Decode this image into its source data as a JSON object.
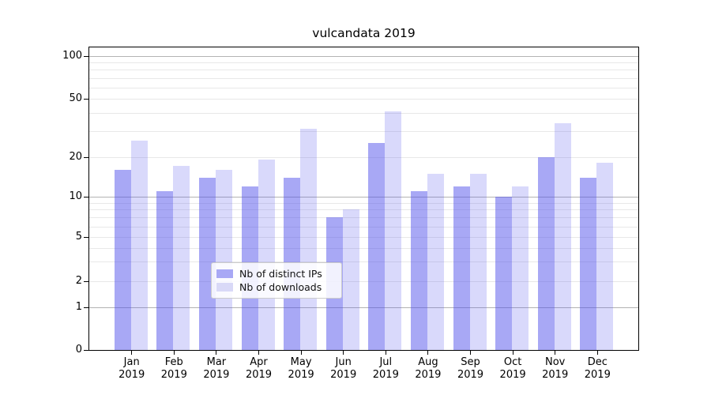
{
  "chart_data": {
    "type": "bar",
    "title": "vulcandata 2019",
    "categories": [
      "Jan 2019",
      "Feb 2019",
      "Mar 2019",
      "Apr 2019",
      "May 2019",
      "Jun 2019",
      "Jul 2019",
      "Aug 2019",
      "Sep 2019",
      "Oct 2019",
      "Nov 2019",
      "Dec 2019"
    ],
    "series": [
      {
        "name": "Nb of distinct IPs",
        "values": [
          16,
          11,
          14,
          12,
          14,
          7,
          25,
          11,
          12,
          10,
          20,
          14
        ],
        "color": "#a8a8f5",
        "fill": "rgba(77,77,235,0.49)"
      },
      {
        "name": "Nb of downloads",
        "values": [
          26,
          17,
          16,
          19,
          31,
          8,
          41,
          15,
          15,
          12,
          34,
          18
        ],
        "color": "#d9d9f7",
        "fill": "rgba(77,77,235,0.21)"
      }
    ],
    "yscale": "asinh",
    "ylim": [
      0,
      110
    ],
    "yticks": [
      0,
      1,
      2,
      5,
      10,
      20,
      50,
      100
    ],
    "ytick_labels": [
      "0",
      "1",
      "2",
      "5",
      "10",
      "20",
      "50",
      "100"
    ],
    "xlabel": "",
    "ylabel": "",
    "grid": "on",
    "legend_position": "lower center"
  },
  "colors": {
    "background": "#ffffff",
    "axis": "#000000",
    "grid_major": "#b3b3b3",
    "grid_minor": "#e8e8e8",
    "legend_border": "#cccccc"
  }
}
